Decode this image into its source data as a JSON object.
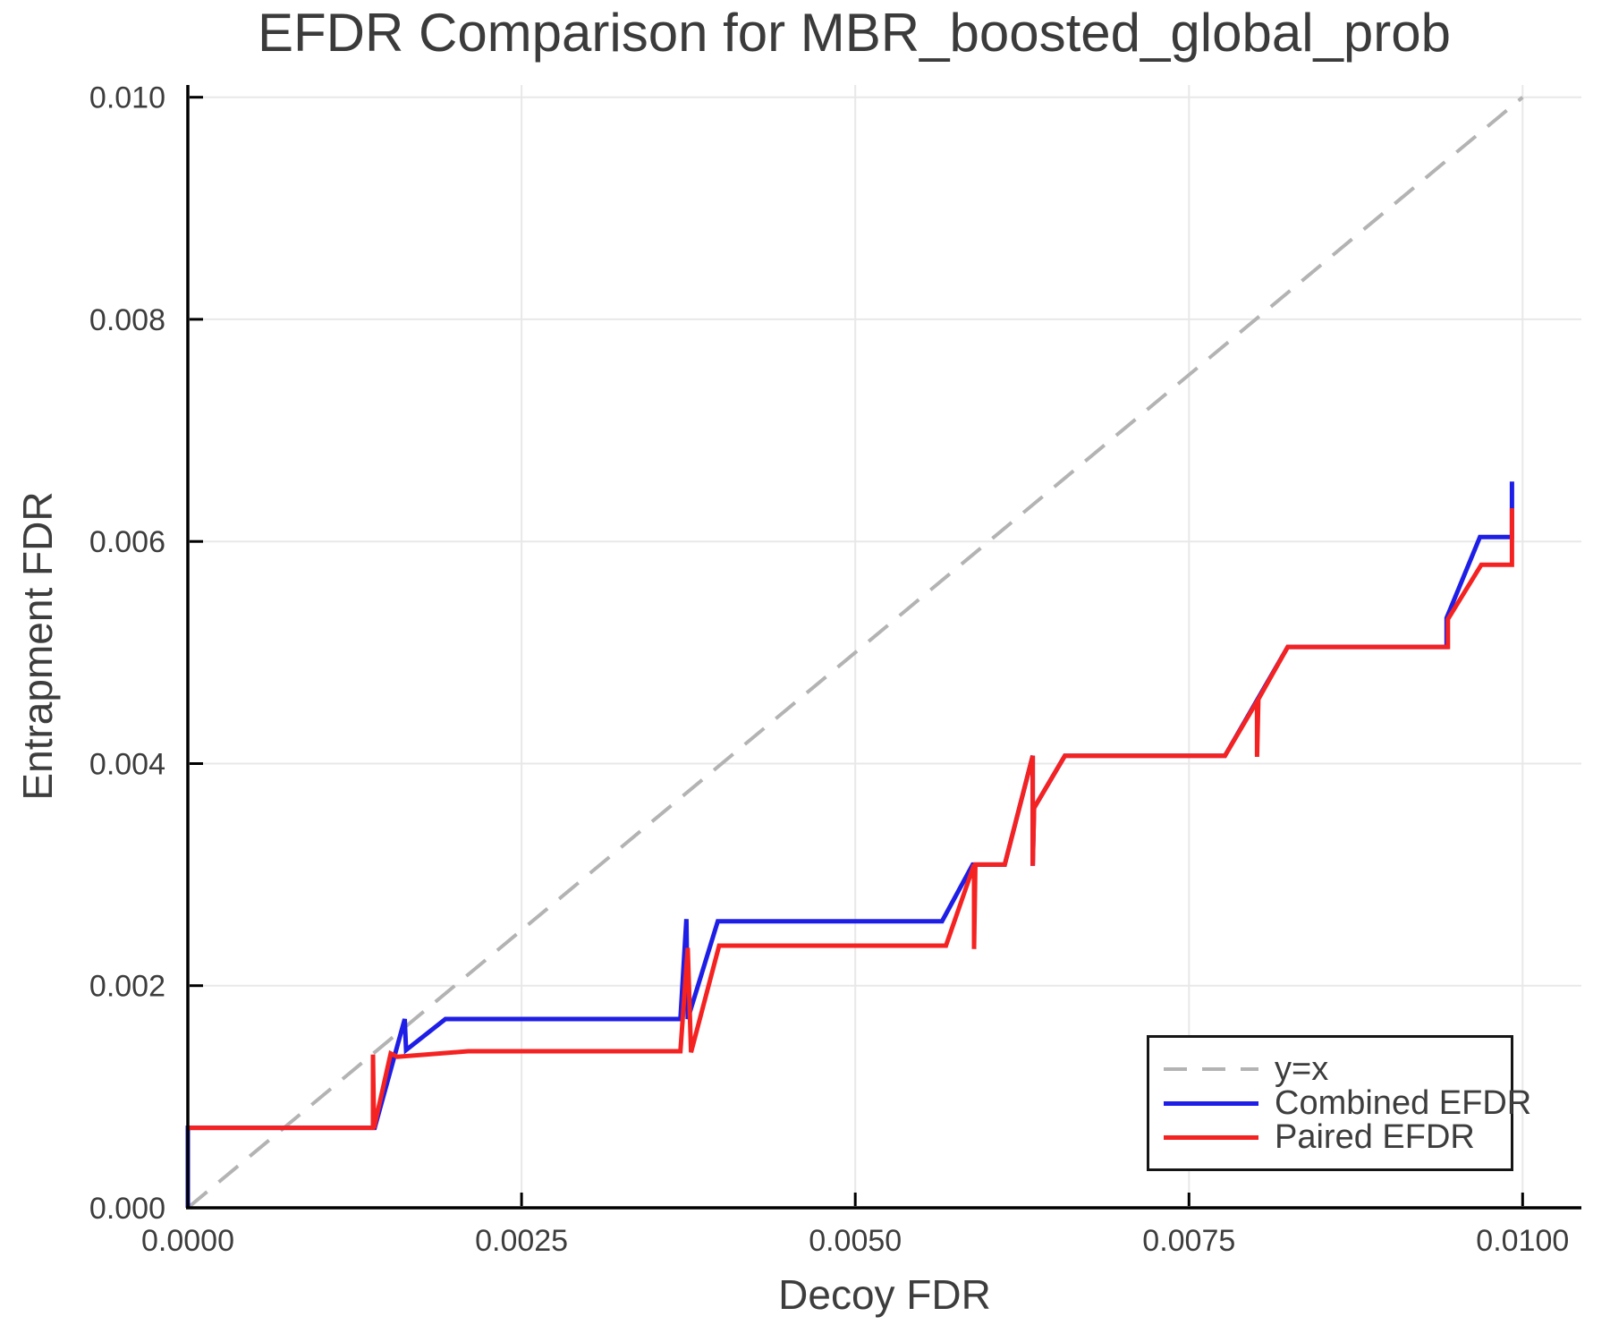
{
  "page": {
    "background": "#ffffff"
  },
  "chart_data": {
    "type": "line",
    "title": "EFDR Comparison for MBR_boosted_global_prob",
    "xlabel": "Decoy FDR",
    "ylabel": "Entrapment FDR",
    "xlim": [
      0,
      0.01044
    ],
    "ylim": [
      0,
      0.01011
    ],
    "grid": true,
    "grid_color": "#e8e8e8",
    "axis_color": "#000000",
    "text_color": "#3d3d3d",
    "x_ticks": {
      "values": [
        0,
        0.0025,
        0.005,
        0.0075,
        0.01
      ],
      "labels": [
        "0.0000",
        "0.0025",
        "0.0050",
        "0.0075",
        "0.0100"
      ]
    },
    "y_ticks": {
      "values": [
        0,
        0.002,
        0.004,
        0.006,
        0.008,
        0.01
      ],
      "labels": [
        "0.000",
        "0.002",
        "0.004",
        "0.006",
        "0.008",
        "0.010"
      ]
    },
    "legend": {
      "position": "bottom-right",
      "entries": [
        {
          "label": "y=x",
          "color": "#b3b3b3",
          "dash": true
        },
        {
          "label": "Combined EFDR",
          "color": "#1e1ee6",
          "dash": false
        },
        {
          "label": "Paired EFDR",
          "color": "#f52222",
          "dash": false
        }
      ]
    },
    "series": [
      {
        "name": "y=x",
        "color": "#b3b3b3",
        "width": 4,
        "dash": "28 17",
        "points": [
          [
            0,
            0
          ],
          [
            0.01,
            0.01
          ]
        ]
      },
      {
        "name": "Combined EFDR",
        "color": "#1e1ee6",
        "width": 5,
        "dash": null,
        "points": [
          [
            0.0,
            0.0
          ],
          [
            0.0,
            0.00072
          ],
          [
            0.0014,
            0.00072
          ],
          [
            0.001625,
            0.0017
          ],
          [
            0.001635,
            0.00142
          ],
          [
            0.00193,
            0.0017
          ],
          [
            0.00369,
            0.0017
          ],
          [
            0.003735,
            0.0026
          ],
          [
            0.003745,
            0.0017
          ],
          [
            0.00397,
            0.00258
          ],
          [
            0.00565,
            0.00258
          ],
          [
            0.00588,
            0.00309
          ],
          [
            0.00612,
            0.00309
          ],
          [
            0.00633,
            0.00407
          ],
          [
            0.00633,
            0.00308
          ],
          [
            0.00634,
            0.0036
          ],
          [
            0.00657,
            0.00407
          ],
          [
            0.00777,
            0.00407
          ],
          [
            0.00824,
            0.00505
          ],
          [
            0.00943,
            0.00505
          ],
          [
            0.00943,
            0.00531
          ],
          [
            0.00968,
            0.00604
          ],
          [
            0.00992,
            0.00604
          ],
          [
            0.00992,
            0.00654
          ]
        ]
      },
      {
        "name": "Paired EFDR",
        "color": "#f52222",
        "width": 5,
        "dash": null,
        "points": [
          [
            0.0,
            0.00072
          ],
          [
            0.001387,
            0.00072
          ],
          [
            0.001387,
            0.00138
          ],
          [
            0.001395,
            0.00072
          ],
          [
            0.00152,
            0.00139
          ],
          [
            0.00157,
            0.00136
          ],
          [
            0.0021,
            0.00141
          ],
          [
            0.00369,
            0.00141
          ],
          [
            0.003745,
            0.00234
          ],
          [
            0.00377,
            0.0014
          ],
          [
            0.00398,
            0.00236
          ],
          [
            0.00568,
            0.00236
          ],
          [
            0.00589,
            0.00309
          ],
          [
            0.00589,
            0.00233
          ],
          [
            0.0059,
            0.00309
          ],
          [
            0.00612,
            0.00309
          ],
          [
            0.00633,
            0.00407
          ],
          [
            0.00633,
            0.00308
          ],
          [
            0.00634,
            0.0036
          ],
          [
            0.00657,
            0.00407
          ],
          [
            0.00777,
            0.00407
          ],
          [
            0.00801,
            0.00456
          ],
          [
            0.00801,
            0.00406
          ],
          [
            0.00802,
            0.00458
          ],
          [
            0.00824,
            0.00505
          ],
          [
            0.00944,
            0.00505
          ],
          [
            0.00944,
            0.0053
          ],
          [
            0.00969,
            0.00579
          ],
          [
            0.00992,
            0.00579
          ],
          [
            0.00992,
            0.0063
          ]
        ]
      }
    ]
  }
}
